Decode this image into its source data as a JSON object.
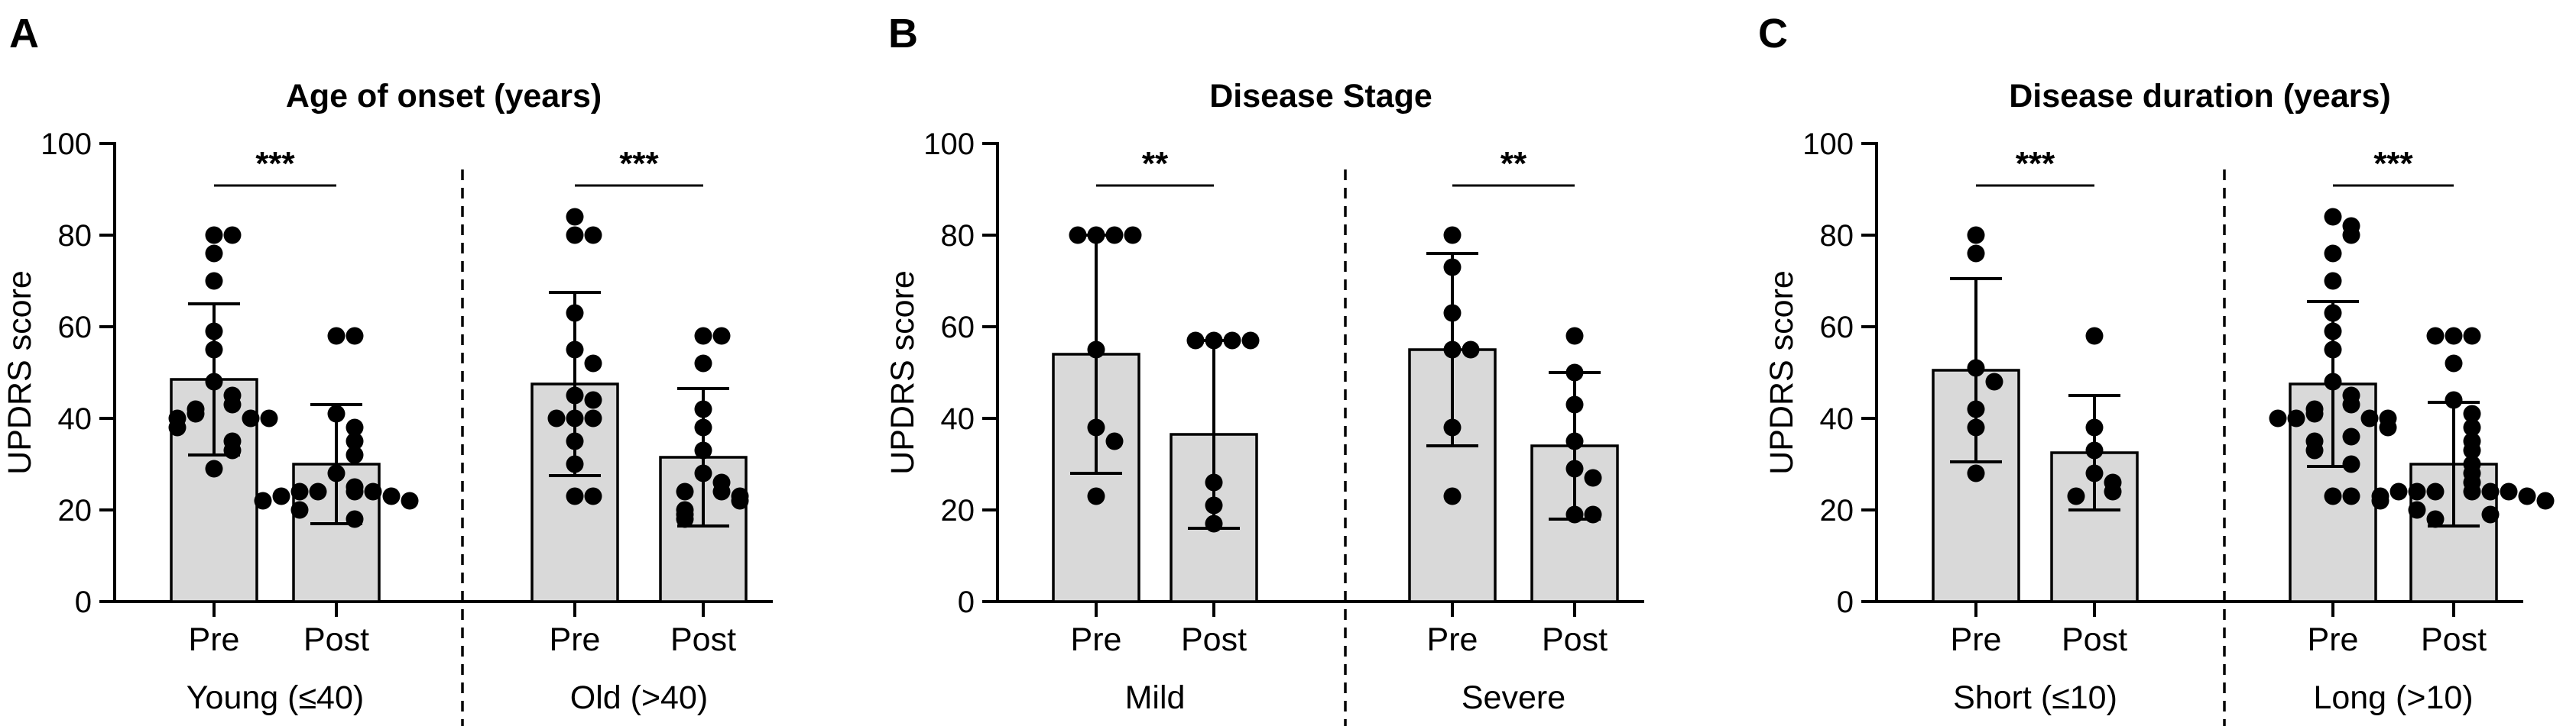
{
  "colors": {
    "bar_fill": "#d9d9d9",
    "stroke": "#000000",
    "point": "#000000",
    "background": "#ffffff"
  },
  "chart_data": [
    {
      "type": "bar",
      "panel": "A",
      "title": "Age of onset (years)",
      "ylabel": "UPDRS score",
      "ylim": [
        0,
        100
      ],
      "yticks": [
        "0",
        "20",
        "40",
        "60",
        "80",
        "100"
      ],
      "groups": [
        {
          "label": "Young (≤40)",
          "significance": "***",
          "bars": [
            {
              "label": "Pre",
              "mean": 48.5,
              "sd": 16.5,
              "points": [
                80,
                80,
                76,
                70,
                59,
                55,
                48,
                45,
                43,
                42,
                41,
                40,
                40,
                40,
                38,
                35,
                33,
                29
              ]
            },
            {
              "label": "Post",
              "mean": 30,
              "sd": 13,
              "points": [
                58,
                58,
                41,
                38,
                35,
                32,
                28,
                25,
                24,
                24,
                24,
                24,
                23,
                23,
                22,
                22,
                20,
                18
              ]
            }
          ]
        },
        {
          "label": "Old (>40)",
          "significance": "***",
          "bars": [
            {
              "label": "Pre",
              "mean": 47.5,
              "sd": 20,
              "points": [
                84,
                80,
                80,
                63,
                55,
                52,
                45,
                44,
                40,
                40,
                40,
                35,
                30,
                23,
                23
              ]
            },
            {
              "label": "Post",
              "mean": 31.5,
              "sd": 15,
              "points": [
                58,
                58,
                52,
                42,
                38,
                33,
                28,
                26,
                24,
                24,
                23,
                22,
                20,
                19,
                18
              ]
            }
          ]
        }
      ]
    },
    {
      "type": "bar",
      "panel": "B",
      "title": "Disease Stage",
      "ylabel": "UPDRS score",
      "ylim": [
        0,
        100
      ],
      "yticks": [
        "0",
        "20",
        "40",
        "60",
        "80",
        "100"
      ],
      "groups": [
        {
          "label": "Mild",
          "significance": "**",
          "bars": [
            {
              "label": "Pre",
              "mean": 54,
              "sd": 26,
              "points": [
                80,
                80,
                80,
                80,
                55,
                38,
                35,
                23
              ]
            },
            {
              "label": "Post",
              "mean": 36.5,
              "sd": 20.5,
              "points": [
                57,
                57,
                57,
                57,
                26,
                21,
                17
              ]
            }
          ]
        },
        {
          "label": "Severe",
          "significance": "**",
          "bars": [
            {
              "label": "Pre",
              "mean": 55,
              "sd": 21,
              "points": [
                80,
                73,
                63,
                55,
                55,
                38,
                23
              ]
            },
            {
              "label": "Post",
              "mean": 34,
              "sd": 16,
              "points": [
                58,
                50,
                43,
                35,
                29,
                27,
                19,
                19
              ]
            }
          ]
        }
      ]
    },
    {
      "type": "bar",
      "panel": "C",
      "title": "Disease duration (years)",
      "ylabel": "UPDRS score",
      "ylim": [
        0,
        100
      ],
      "yticks": [
        "0",
        "20",
        "40",
        "60",
        "80",
        "100"
      ],
      "groups": [
        {
          "label": "Short (≤10)",
          "significance": "***",
          "bars": [
            {
              "label": "Pre",
              "mean": 50.5,
              "sd": 20,
              "points": [
                80,
                76,
                51,
                48,
                42,
                38,
                28
              ]
            },
            {
              "label": "Post",
              "mean": 32.5,
              "sd": 12.5,
              "points": [
                58,
                38,
                33,
                28,
                26,
                24,
                23
              ]
            }
          ]
        },
        {
          "label": "Long (>10)",
          "significance": "***",
          "bars": [
            {
              "label": "Pre",
              "mean": 47.5,
              "sd": 18,
              "points": [
                84,
                82,
                80,
                76,
                70,
                63,
                59,
                55,
                48,
                45,
                43,
                42,
                41,
                40,
                40,
                40,
                40,
                38,
                36,
                35,
                33,
                30,
                23,
                23
              ]
            },
            {
              "label": "Post",
              "mean": 30,
              "sd": 13.5,
              "points": [
                58,
                58,
                58,
                52,
                44,
                41,
                38,
                35,
                33,
                30,
                28,
                26,
                24,
                24,
                24,
                24,
                24,
                24,
                23,
                23,
                22,
                22,
                20,
                19,
                18
              ]
            }
          ]
        }
      ]
    }
  ]
}
